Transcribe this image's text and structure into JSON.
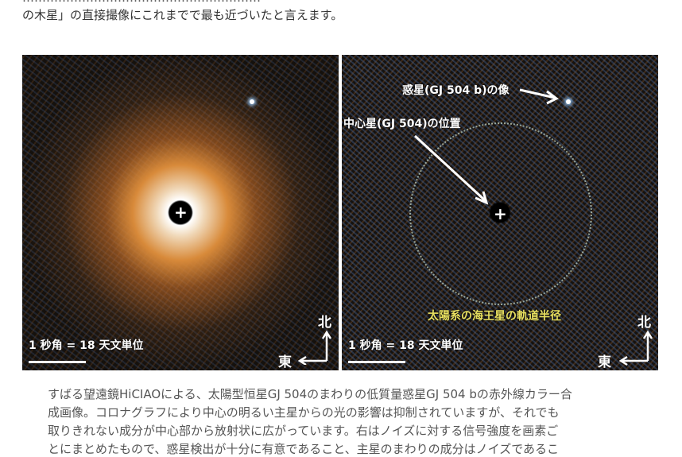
{
  "article": {
    "line0": "……………………………………………………",
    "line1": "の木星」の直接撮像にこれまでで最も近づいたと言えます。"
  },
  "figure": {
    "left": {
      "scale_label": "1 秒角 = 18 天文単位",
      "north": "北",
      "east": "東"
    },
    "right": {
      "planet_label": "惑星(GJ 504 b)の像",
      "star_label": "中心星(GJ 504)の位置",
      "orbit_label": "太陽系の海王星の軌道半径",
      "scale_label": "1 秒角 = 18 天文単位",
      "north": "北",
      "east": "東",
      "orbit_label_color": "#e8e060"
    },
    "caption": [
      "すばる望遠鏡HiCIAOによる、太陽型恒星GJ 504のまわりの低質量惑星GJ 504 bの赤外線カラー合",
      "成画像。コロナグラフにより中心の明るい主星からの光の影響は抑制されていますが、それでも",
      "取りきれない成分が中心部から放射状に広がっています。右はノイズに対する信号強度を画素ご",
      "とにまとめたもので、惑星検出が十分に有意であること、主星のまわりの成分はノイズであるこ"
    ]
  }
}
